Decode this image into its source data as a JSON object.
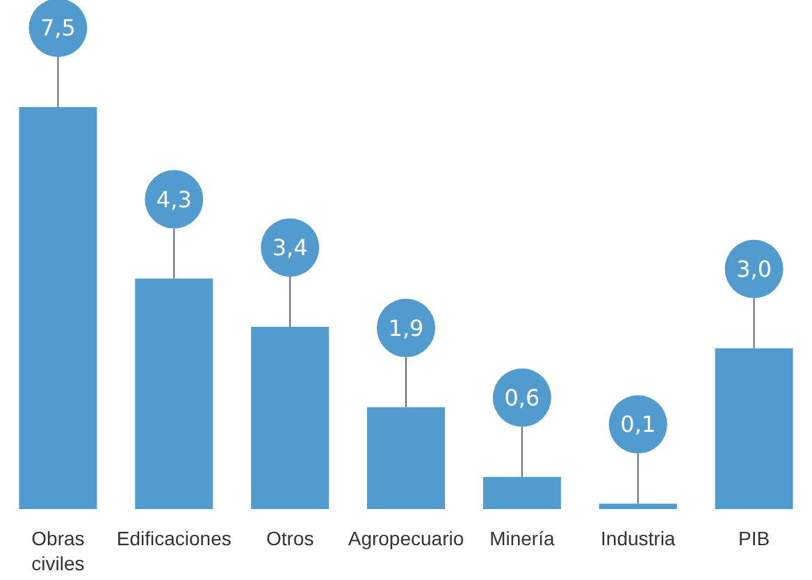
{
  "chart_data": {
    "type": "bar",
    "categories": [
      "Obras civiles",
      "Edificaciones",
      "Otros",
      "Agropecuario",
      "Minería",
      "Industria",
      "PIB"
    ],
    "values": [
      7.5,
      4.3,
      3.4,
      1.9,
      0.6,
      0.1,
      3.0
    ],
    "value_labels": [
      "7,5",
      "4,3",
      "3,4",
      "1,9",
      "0,6",
      "0,1",
      "3,0"
    ],
    "color": "#529bcf"
  }
}
